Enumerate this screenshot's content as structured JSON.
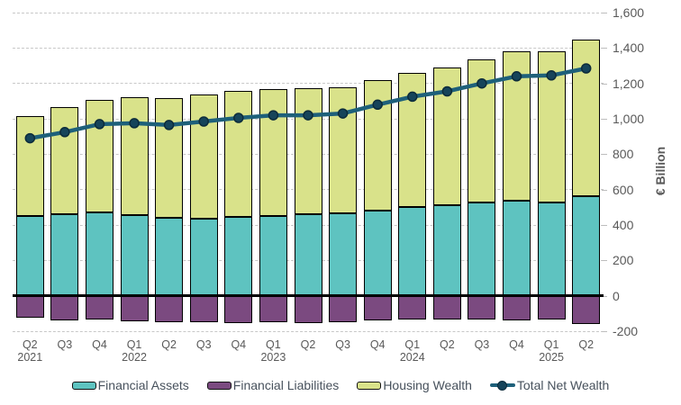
{
  "chart_data": {
    "type": "bar",
    "subtype": "stacked-column-with-line-overlay",
    "title": "",
    "xlabel": "",
    "ylabel": "€ Billion",
    "ylim": [
      -200,
      1600
    ],
    "ytick_step": 200,
    "ytick_labels": [
      "-200",
      "0",
      "200",
      "400",
      "600",
      "800",
      "1,000",
      "1,200",
      "1,400",
      "1,600"
    ],
    "grid": "dashed-horizontal",
    "legend_position": "bottom",
    "axis_text_color": "#595959",
    "gridline_color": "#c8c8c8",
    "zero_line_color": "#000000",
    "categories": [
      "Q2",
      "Q3",
      "Q4",
      "Q1",
      "Q2",
      "Q3",
      "Q4",
      "Q1",
      "Q2",
      "Q3",
      "Q4",
      "Q1",
      "Q2",
      "Q3",
      "Q4",
      "Q1",
      "Q2"
    ],
    "year_labels": [
      {
        "index": 0,
        "label": "2021"
      },
      {
        "index": 3,
        "label": "2022"
      },
      {
        "index": 7,
        "label": "2023"
      },
      {
        "index": 11,
        "label": "2024"
      },
      {
        "index": 15,
        "label": "2025"
      }
    ],
    "series": [
      {
        "name": "Financial Assets",
        "type": "bar",
        "color": "#5EC3C0",
        "values": [
          450,
          460,
          470,
          455,
          440,
          435,
          445,
          450,
          460,
          465,
          480,
          500,
          510,
          525,
          535,
          525,
          565
        ]
      },
      {
        "name": "Financial Liabilities",
        "type": "bar",
        "color": "#7B4A80",
        "values": [
          -125,
          -140,
          -135,
          -145,
          -150,
          -150,
          -155,
          -150,
          -155,
          -150,
          -140,
          -135,
          -135,
          -135,
          -140,
          -135,
          -160
        ]
      },
      {
        "name": "Housing Wealth",
        "type": "bar",
        "color": "#D9E28A",
        "values": [
          565,
          605,
          635,
          665,
          675,
          700,
          715,
          720,
          715,
          715,
          740,
          760,
          780,
          810,
          845,
          855,
          880
        ]
      },
      {
        "name": "Total Net Wealth",
        "type": "line",
        "color": "#1E607A",
        "marker_color": "#16445A",
        "marker_border": "#0C2B3B",
        "values": [
          890,
          925,
          970,
          975,
          965,
          985,
          1005,
          1020,
          1020,
          1030,
          1080,
          1125,
          1155,
          1200,
          1240,
          1245,
          1285
        ]
      }
    ]
  }
}
